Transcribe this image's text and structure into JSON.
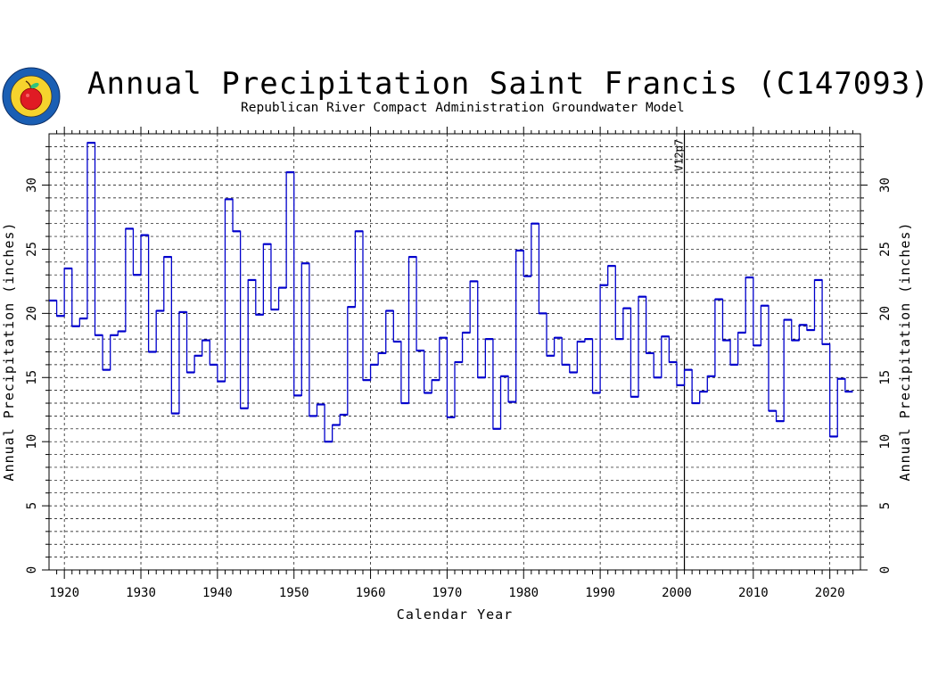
{
  "header": {
    "title": "Annual Precipitation Saint Francis (C147093)",
    "subtitle": "Republican River Compact Administration Groundwater Model"
  },
  "logo": {
    "name": "rrca-seal-logo"
  },
  "chart_data": {
    "type": "line",
    "step": true,
    "title": "Annual Precipitation Saint Francis (C147093)",
    "xlabel": "Calendar Year",
    "ylabel": "Annual Precipitation (inches)",
    "ylabel_right": "Annual Precipitation (inches)",
    "xlim": [
      1918,
      2024
    ],
    "ylim": [
      0,
      34
    ],
    "xticks": [
      1920,
      1930,
      1940,
      1950,
      1960,
      1970,
      1980,
      1990,
      2000,
      2010,
      2020
    ],
    "yticks": [
      0,
      5,
      10,
      15,
      20,
      25,
      30
    ],
    "grid": true,
    "annotation": {
      "text": "V12p7",
      "x": 2001
    },
    "series_color": "#0000cc",
    "x": [
      1918,
      1919,
      1920,
      1921,
      1922,
      1923,
      1924,
      1925,
      1926,
      1927,
      1928,
      1929,
      1930,
      1931,
      1932,
      1933,
      1934,
      1935,
      1936,
      1937,
      1938,
      1939,
      1940,
      1941,
      1942,
      1943,
      1944,
      1945,
      1946,
      1947,
      1948,
      1949,
      1950,
      1951,
      1952,
      1953,
      1954,
      1955,
      1956,
      1957,
      1958,
      1959,
      1960,
      1961,
      1962,
      1963,
      1964,
      1965,
      1966,
      1967,
      1968,
      1969,
      1970,
      1971,
      1972,
      1973,
      1974,
      1975,
      1976,
      1977,
      1978,
      1979,
      1980,
      1981,
      1982,
      1983,
      1984,
      1985,
      1986,
      1987,
      1988,
      1989,
      1990,
      1991,
      1992,
      1993,
      1994,
      1995,
      1996,
      1997,
      1998,
      1999,
      2000,
      2001,
      2002,
      2003,
      2004,
      2005,
      2006,
      2007,
      2008,
      2009,
      2010,
      2011,
      2012,
      2013,
      2014,
      2015,
      2016,
      2017,
      2018,
      2019,
      2020,
      2021,
      2022
    ],
    "values": [
      21.0,
      19.8,
      23.5,
      19.0,
      19.6,
      33.3,
      18.3,
      15.6,
      18.3,
      18.6,
      26.6,
      23.0,
      26.1,
      17.0,
      20.2,
      24.4,
      12.2,
      20.1,
      15.4,
      16.7,
      17.9,
      16.0,
      14.7,
      28.9,
      26.4,
      12.6,
      22.6,
      19.9,
      25.4,
      20.3,
      22.0,
      31.0,
      13.6,
      23.9,
      12.0,
      12.9,
      10.0,
      11.3,
      12.1,
      20.5,
      26.4,
      14.8,
      16.0,
      16.9,
      20.2,
      17.8,
      13.0,
      24.4,
      17.1,
      13.8,
      14.8,
      18.1,
      11.9,
      16.2,
      18.5,
      22.5,
      15.0,
      18.0,
      11.0,
      15.1,
      13.1,
      24.9,
      22.9,
      27.0,
      20.0,
      16.7,
      18.1,
      16.0,
      15.4,
      17.8,
      18.0,
      13.8,
      22.2,
      23.7,
      18.0,
      20.4,
      13.5,
      21.3,
      16.9,
      15.0,
      18.2,
      16.2,
      14.4,
      15.6,
      13.0,
      13.9,
      15.1,
      21.1,
      17.9,
      16.0,
      18.5,
      22.8,
      17.5,
      20.6,
      12.4,
      11.6,
      19.5,
      17.9,
      19.1,
      18.7,
      22.6,
      17.6,
      10.4,
      14.9,
      13.9
    ]
  }
}
